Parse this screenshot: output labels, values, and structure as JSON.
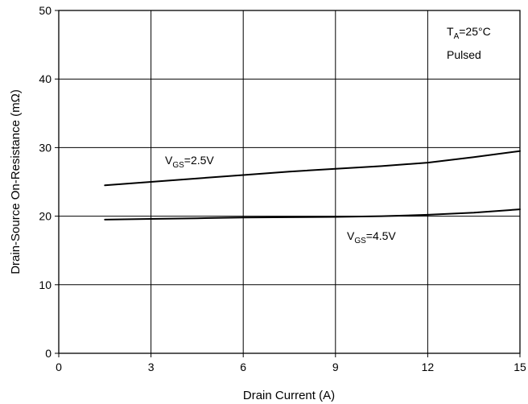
{
  "chart_data": {
    "type": "line",
    "xlabel": "Drain Current (A)",
    "ylabel": "Drain-Source On-Resistance (mΩ)",
    "xlim": [
      0,
      15
    ],
    "ylim": [
      0,
      50
    ],
    "xticks": [
      "0",
      "3",
      "6",
      "9",
      "12",
      "15"
    ],
    "yticks": [
      "0",
      "10",
      "20",
      "30",
      "40",
      "50"
    ],
    "grid": true,
    "series": [
      {
        "name_main": "V",
        "name_sub": "GS",
        "name_rest": "=2.5V",
        "x": [
          1.5,
          3,
          4.5,
          6,
          7.5,
          9,
          10.5,
          12,
          13.5,
          15
        ],
        "y": [
          24.5,
          25.0,
          25.5,
          26.0,
          26.5,
          26.9,
          27.3,
          27.8,
          28.6,
          29.5
        ]
      },
      {
        "name_main": "V",
        "name_sub": "GS",
        "name_rest": "=4.5V",
        "x": [
          1.5,
          3,
          4.5,
          6,
          7.5,
          9,
          10.5,
          12,
          13.5,
          15
        ],
        "y": [
          19.5,
          19.6,
          19.7,
          19.8,
          19.85,
          19.9,
          20.0,
          20.2,
          20.5,
          21.0
        ]
      }
    ],
    "annotations": {
      "condition_main": "T",
      "condition_sub": "A",
      "condition_rest": "=25°C",
      "condition_line2": "Pulsed"
    }
  }
}
